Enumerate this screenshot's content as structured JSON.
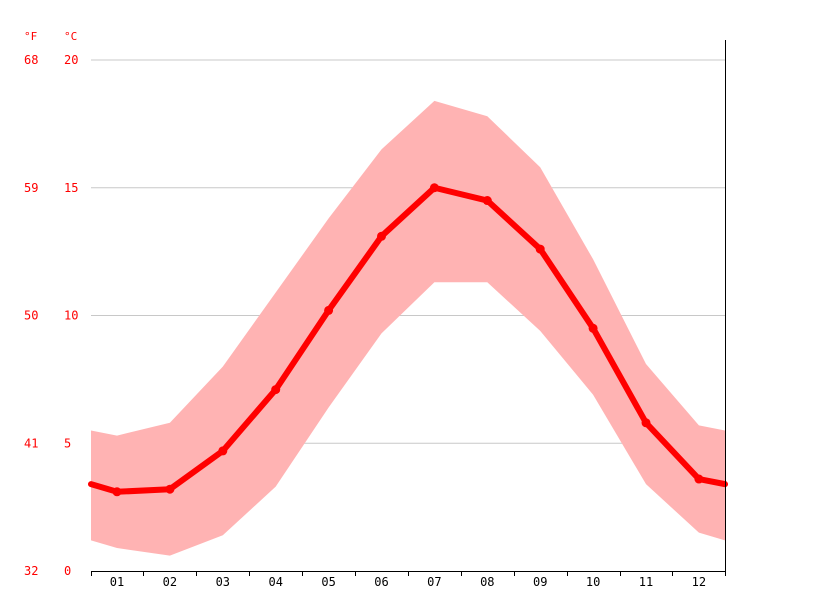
{
  "chart_data": {
    "type": "line",
    "title": "",
    "xlabel": "",
    "ylabel": "",
    "categories": [
      "01",
      "02",
      "03",
      "04",
      "05",
      "06",
      "07",
      "08",
      "09",
      "10",
      "11",
      "12"
    ],
    "series": [
      {
        "values": [
          3.1,
          3.2,
          4.7,
          7.1,
          10.2,
          13.1,
          15.0,
          14.5,
          12.6,
          9.5,
          5.8,
          3.6
        ]
      }
    ],
    "range_band": {
      "upper": [
        5.3,
        5.8,
        8.0,
        10.9,
        13.8,
        16.5,
        18.4,
        17.8,
        15.8,
        12.2,
        8.1,
        5.7
      ],
      "lower": [
        0.9,
        0.6,
        1.4,
        3.3,
        6.4,
        9.3,
        11.3,
        11.3,
        9.4,
        6.9,
        3.4,
        1.5
      ]
    },
    "edge_values": {
      "start": 3.4,
      "end": 3.4,
      "band_upper_start": 5.5,
      "band_upper_end": 5.5,
      "band_lower_start": 1.2,
      "band_lower_end": 1.2
    },
    "ylim": [
      0,
      20
    ],
    "y_ticks_c": [
      "0",
      "5",
      "10",
      "15",
      "20"
    ],
    "y_ticks_f": [
      "32",
      "41",
      "50",
      "59",
      "68"
    ],
    "unit_f": "°F",
    "unit_c": "°C",
    "grid": true,
    "colors": {
      "line": "#ff0000",
      "band": "#ffb3b3",
      "text": "#ff0000",
      "grid": "#c8c8c8",
      "axis": "#000000"
    }
  }
}
